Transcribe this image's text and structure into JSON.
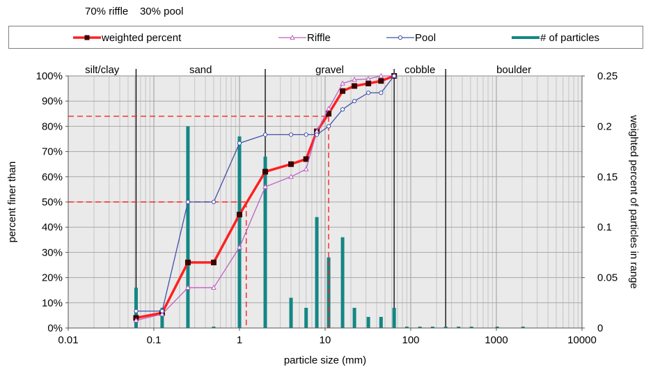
{
  "caption": {
    "riffle": "70% riffle",
    "pool": "30% pool"
  },
  "chart_data": {
    "type": "line",
    "xscale": "log",
    "xlabel": "particle size (mm)",
    "ylabel": "percent finer than",
    "y2label": "weighted percent of particles in range",
    "xlim": [
      0.01,
      10000
    ],
    "ylim": [
      0,
      100
    ],
    "y2lim": [
      0,
      0.25
    ],
    "x_ticks": [
      "0.01",
      "0.1",
      "1",
      "10",
      "100",
      "1000",
      "10000"
    ],
    "y_ticks": [
      "0%",
      "10%",
      "20%",
      "30%",
      "40%",
      "50%",
      "60%",
      "70%",
      "80%",
      "90%",
      "100%"
    ],
    "y2_ticks": [
      "0",
      "0.05",
      "0.1",
      "0.15",
      "0.2",
      "0.25"
    ],
    "grid": true,
    "legend_position": "top",
    "size_classes": [
      {
        "label": "silt/clay",
        "from": 0.01,
        "to": 0.062
      },
      {
        "label": "sand",
        "from": 0.062,
        "to": 2
      },
      {
        "label": "gravel",
        "from": 2,
        "to": 64
      },
      {
        "label": "cobble",
        "from": 64,
        "to": 256
      },
      {
        "label": "boulder",
        "from": 256,
        "to": 10000
      }
    ],
    "series": [
      {
        "name": "weighted percent",
        "axis": "left",
        "color": "#ff2020",
        "marker": "square",
        "x": [
          0.062,
          0.125,
          0.25,
          0.5,
          1,
          2,
          4,
          6,
          8,
          11,
          16,
          22,
          32,
          45,
          64
        ],
        "y": [
          4,
          6,
          26,
          26,
          45,
          62,
          65,
          67,
          78,
          85,
          94,
          96,
          97,
          98,
          100
        ]
      },
      {
        "name": "Riffle",
        "axis": "left",
        "color": "#c060c0",
        "marker": "triangle",
        "x": [
          0.062,
          0.125,
          0.25,
          0.5,
          1,
          2,
          4,
          6,
          8,
          11,
          16,
          22,
          32,
          45,
          64
        ],
        "y": [
          3,
          5.5,
          16,
          16,
          32,
          56,
          60,
          63,
          78,
          87,
          97,
          98.5,
          98.8,
          100,
          100
        ]
      },
      {
        "name": "Pool",
        "axis": "left",
        "color": "#4050a8",
        "marker": "circle",
        "x": [
          0.062,
          0.125,
          0.25,
          0.5,
          1,
          2,
          4,
          6,
          8,
          11,
          16,
          22,
          32,
          45,
          64
        ],
        "y": [
          6.7,
          6.7,
          50,
          50,
          73.3,
          76.7,
          76.7,
          76.7,
          76.7,
          80,
          86.7,
          90,
          93.3,
          93.3,
          100
        ]
      },
      {
        "name": "# of particles",
        "axis": "right",
        "color": "#138785",
        "marker": "bar",
        "x": [
          0.062,
          0.125,
          0.25,
          0.5,
          1,
          2,
          4,
          6,
          8,
          11,
          16,
          22,
          32,
          45,
          64,
          90,
          128,
          180,
          256,
          362,
          512,
          1024,
          2048
        ],
        "y": [
          0.04,
          0.02,
          0.2,
          0,
          0.19,
          0.17,
          0.03,
          0.02,
          0.11,
          0.07,
          0.09,
          0.02,
          0.011,
          0.011,
          0.02,
          0,
          0,
          0,
          0,
          0,
          0,
          0,
          0
        ]
      }
    ],
    "reference_lines": [
      {
        "y": 84,
        "x": 11
      },
      {
        "y": 50,
        "x": 1.2
      }
    ]
  }
}
